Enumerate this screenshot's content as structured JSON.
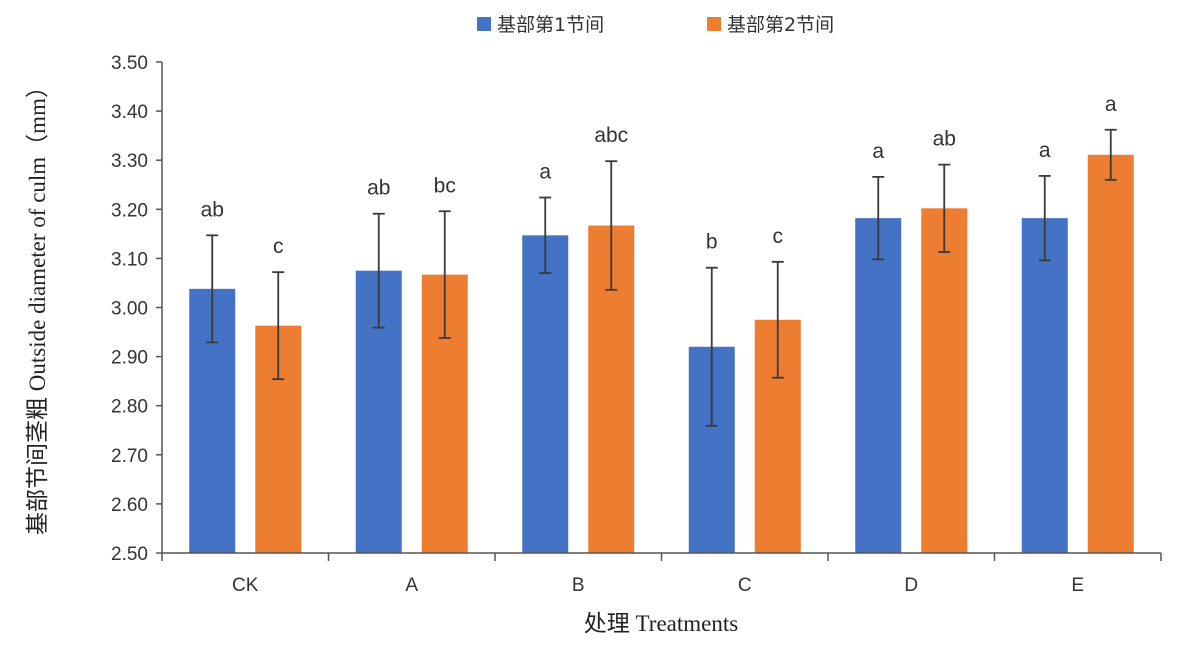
{
  "chart_data": {
    "type": "bar",
    "categories": [
      "CK",
      "A",
      "B",
      "C",
      "D",
      "E"
    ],
    "series": [
      {
        "name": "基部第1节间",
        "color": "#4472C4",
        "values": [
          3.038,
          3.075,
          3.147,
          2.92,
          3.182,
          3.182
        ],
        "errors": [
          0.109,
          0.116,
          0.077,
          0.161,
          0.084,
          0.086
        ],
        "letters": [
          "ab",
          "ab",
          "a",
          "b",
          "a",
          "a"
        ]
      },
      {
        "name": "基部第2节间",
        "color": "#ED7D31",
        "values": [
          2.963,
          3.067,
          3.167,
          2.975,
          3.202,
          3.311
        ],
        "errors": [
          0.109,
          0.129,
          0.131,
          0.118,
          0.089,
          0.051
        ],
        "letters": [
          "c",
          "bc",
          "abc",
          "c",
          "ab",
          "a"
        ]
      }
    ],
    "xlabel": "处理 Treatments",
    "ylabel": "基部节间茎粗 Outside diameter of culm（mm）",
    "ylim": [
      2.5,
      3.5
    ],
    "yticks": [
      "2.50",
      "2.60",
      "2.70",
      "2.80",
      "2.90",
      "3.00",
      "3.10",
      "3.20",
      "3.30",
      "3.40",
      "3.50"
    ],
    "grid": false,
    "legend": "top-center"
  }
}
